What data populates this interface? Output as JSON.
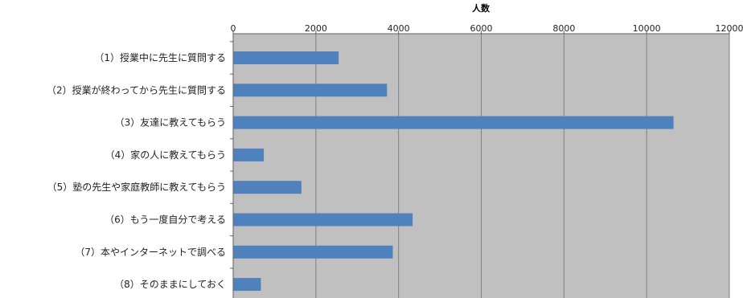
{
  "chart_data": {
    "type": "bar",
    "orientation": "horizontal",
    "title": "",
    "xlabel": "人数",
    "ylabel": "",
    "xlim": [
      0,
      12000
    ],
    "xticks": [
      0,
      2000,
      4000,
      6000,
      8000,
      10000,
      12000
    ],
    "grid": true,
    "legend": "none",
    "categories": [
      "（1）授業中に先生に質問する",
      "（2）授業が終わってから先生に質問する",
      "（3）友達に教えてもらう",
      "（4）家の人に教えてもらう",
      "（5）塾の先生や家庭教師に教えてもらう",
      "（6）もう一度自分で考える",
      "（7）本やインターネットで調べる",
      "（8）そのままにしておく"
    ],
    "values": [
      2550,
      3720,
      10650,
      740,
      1650,
      4340,
      3860,
      670
    ],
    "colors": {
      "bar": "#4f81bd",
      "plot_background": "#c0c0c0",
      "gridline": "#808080"
    }
  }
}
